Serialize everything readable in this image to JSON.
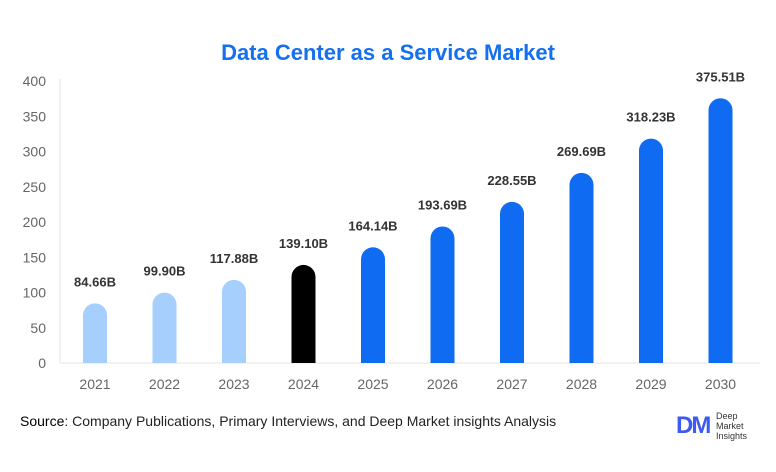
{
  "chart_data": {
    "type": "bar",
    "title": "Data Center as a Service Market",
    "categories": [
      "2021",
      "2022",
      "2023",
      "2024",
      "2025",
      "2026",
      "2027",
      "2028",
      "2029",
      "2030"
    ],
    "values": [
      84.66,
      99.9,
      117.88,
      139.1,
      164.14,
      193.69,
      228.55,
      269.69,
      318.23,
      375.51
    ],
    "data_labels": [
      "84.66B",
      "99.90B",
      "117.88B",
      "139.10B",
      "164.14B",
      "193.69B",
      "228.55B",
      "269.69B",
      "318.23B",
      "375.51B"
    ],
    "bar_colors": [
      "#a6cffd",
      "#a6cffd",
      "#a6cffd",
      "#000000",
      "#0f6cf2",
      "#0f6cf2",
      "#0f6cf2",
      "#0f6cf2",
      "#0f6cf2",
      "#0f6cf2"
    ],
    "ylim": [
      0,
      400
    ],
    "yticks": [
      "0",
      "50",
      "100",
      "150",
      "200",
      "250",
      "300",
      "350",
      "400"
    ],
    "grid": false,
    "xlabel": "",
    "ylabel": ""
  },
  "footer": {
    "source_label": "Source",
    "source_text": ": Company Publications, Primary Interviews, and Deep Market insights Analysis"
  },
  "logo": {
    "mark": "DM",
    "text": "Deep Market Insights",
    "color": "#3d5af1"
  },
  "colors": {
    "title": "#1570ef"
  }
}
